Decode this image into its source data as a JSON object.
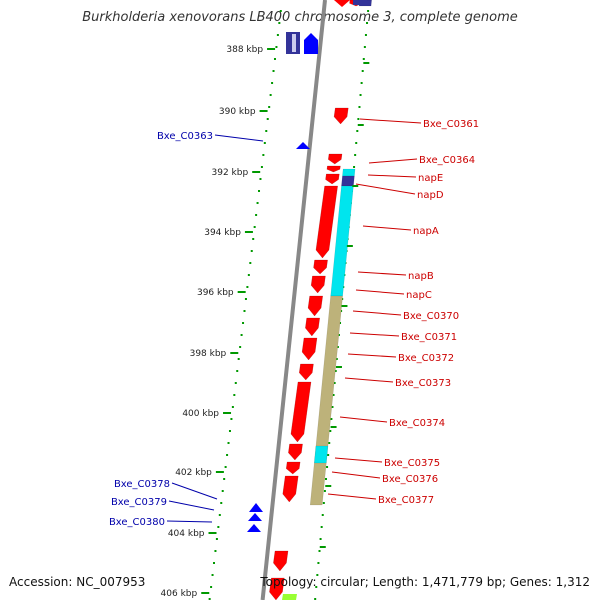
{
  "title": "Burkholderia xenovorans LB400 chromosome 3, complete genome",
  "footer": {
    "accession": "Accession: NC_007953",
    "summary": "Topology: circular; Length: 1,471,779 bp; Genes: 1,312"
  },
  "colors": {
    "backbone": "#888888",
    "forward_gene": "#ff0000",
    "reverse_gene": "#0000ff",
    "label_right": "#cc0000",
    "label_left": "#0000aa",
    "tick": "#009900",
    "cyan_feature": "#00e5ee",
    "khaki_feature": "#bdb27a",
    "navy_feature": "#333399"
  },
  "ticks": [
    {
      "label": "388 kbp"
    },
    {
      "label": "390 kbp"
    },
    {
      "label": "392 kbp"
    },
    {
      "label": "394 kbp"
    },
    {
      "label": "396 kbp"
    },
    {
      "label": "398 kbp"
    },
    {
      "label": "400 kbp"
    },
    {
      "label": "402 kbp"
    },
    {
      "label": "404 kbp"
    },
    {
      "label": "406 kbp"
    }
  ],
  "right_labels": [
    {
      "name": "Bxe_C0361"
    },
    {
      "name": "Bxe_C0364"
    },
    {
      "name": "napE"
    },
    {
      "name": "napD"
    },
    {
      "name": "napA"
    },
    {
      "name": "napB"
    },
    {
      "name": "napC"
    },
    {
      "name": "Bxe_C0370"
    },
    {
      "name": "Bxe_C0371"
    },
    {
      "name": "Bxe_C0372"
    },
    {
      "name": "Bxe_C0373"
    },
    {
      "name": "Bxe_C0374"
    },
    {
      "name": "Bxe_C0375"
    },
    {
      "name": "Bxe_C0376"
    },
    {
      "name": "Bxe_C0377"
    }
  ],
  "left_labels": [
    {
      "name": "Bxe_C0363"
    },
    {
      "name": "Bxe_C0378"
    },
    {
      "name": "Bxe_C0379"
    },
    {
      "name": "Bxe_C0380"
    }
  ]
}
